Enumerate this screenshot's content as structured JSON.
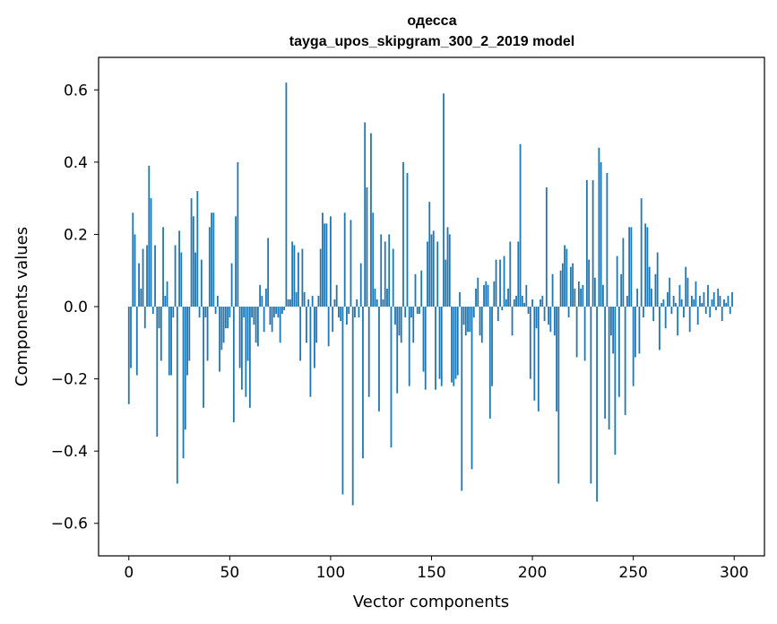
{
  "chart_data": {
    "type": "bar",
    "title": "одесса",
    "subtitle": "tayga_upos_skipgram_300_2_2019 model",
    "xlabel": "Vector components",
    "ylabel": "Components values",
    "xlim": [
      -15,
      315
    ],
    "ylim": [
      -0.69,
      0.69
    ],
    "xticks": [
      0,
      50,
      100,
      150,
      200,
      250,
      300
    ],
    "xtick_labels": [
      "0",
      "50",
      "100",
      "150",
      "200",
      "250",
      "300"
    ],
    "yticks": [
      0.6,
      0.4,
      0.2,
      0.0,
      -0.2,
      -0.4,
      -0.6
    ],
    "ytick_labels": [
      "0.6",
      "0.4",
      "0.2",
      "0.0",
      "−0.2",
      "−0.4",
      "−0.6"
    ],
    "bar_color": "#1f77b4",
    "grid": false,
    "x": "indices 0..299",
    "values": [
      -0.27,
      -0.17,
      0.26,
      0.2,
      -0.19,
      0.12,
      0.05,
      0.16,
      -0.06,
      0.17,
      0.39,
      0.3,
      -0.02,
      0.17,
      -0.36,
      -0.06,
      -0.15,
      0.22,
      0.03,
      0.07,
      -0.19,
      -0.19,
      -0.03,
      0.17,
      -0.49,
      0.21,
      0.15,
      -0.42,
      -0.34,
      -0.19,
      -0.15,
      0.3,
      0.25,
      0.15,
      0.32,
      -0.03,
      0.13,
      -0.28,
      -0.03,
      -0.15,
      0.22,
      0.26,
      0.26,
      -0.02,
      0.03,
      -0.18,
      -0.12,
      -0.1,
      -0.06,
      -0.06,
      -0.03,
      0.12,
      -0.32,
      0.25,
      0.4,
      -0.17,
      -0.23,
      -0.03,
      -0.25,
      -0.15,
      -0.28,
      -0.03,
      -0.05,
      -0.1,
      -0.11,
      0.06,
      0.03,
      -0.07,
      0.05,
      0.19,
      -0.05,
      -0.07,
      -0.03,
      -0.02,
      -0.03,
      -0.1,
      -0.02,
      -0.01,
      0.62,
      0.02,
      0.02,
      0.18,
      0.17,
      0.04,
      0.15,
      -0.15,
      0.16,
      0.04,
      -0.1,
      0.02,
      -0.25,
      0.03,
      -0.17,
      -0.1,
      0.03,
      0.16,
      0.26,
      0.23,
      0.23,
      -0.11,
      0.25,
      -0.07,
      0.02,
      0.06,
      -0.03,
      -0.04,
      -0.52,
      0.26,
      -0.05,
      -0.02,
      0.24,
      -0.55,
      -0.03,
      0.02,
      -0.03,
      0.12,
      -0.42,
      0.51,
      0.33,
      -0.25,
      0.48,
      0.26,
      0.05,
      0.02,
      -0.29,
      0.2,
      0.02,
      0.18,
      0.05,
      0.2,
      -0.39,
      0.16,
      -0.05,
      -0.24,
      -0.08,
      -0.1,
      0.4,
      -0.03,
      0.37,
      -0.22,
      -0.03,
      -0.1,
      0.09,
      -0.02,
      -0.02,
      0.1,
      -0.18,
      -0.23,
      0.18,
      0.29,
      0.2,
      0.21,
      -0.23,
      0.18,
      -0.2,
      -0.22,
      0.59,
      0.13,
      0.22,
      0.2,
      -0.21,
      -0.22,
      -0.2,
      -0.19,
      0.04,
      -0.51,
      -0.05,
      -0.08,
      -0.07,
      -0.07,
      -0.45,
      -0.03,
      0.05,
      0.08,
      -0.08,
      -0.1,
      0.06,
      0.07,
      0.06,
      -0.31,
      -0.22,
      0.07,
      0.13,
      -0.04,
      0.13,
      -0.01,
      0.14,
      0.02,
      0.05,
      0.18,
      -0.08,
      0.02,
      0.03,
      0.18,
      0.45,
      0.03,
      0.01,
      0.06,
      -0.02,
      -0.2,
      0.02,
      -0.26,
      -0.06,
      -0.29,
      0.02,
      0.03,
      -0.04,
      0.33,
      -0.05,
      -0.07,
      0.09,
      -0.08,
      -0.29,
      -0.49,
      0.1,
      0.12,
      0.17,
      0.16,
      -0.03,
      0.11,
      0.12,
      0.05,
      -0.14,
      0.07,
      0.05,
      0.06,
      -0.15,
      0.35,
      0.13,
      -0.49,
      0.35,
      0.08,
      -0.54,
      0.44,
      0.4,
      0.06,
      -0.31,
      0.37,
      -0.34,
      -0.08,
      -0.13,
      -0.41,
      0.14,
      -0.25,
      0.09,
      0.19,
      -0.3,
      0.03,
      0.22,
      0.22,
      -0.22,
      -0.14,
      0.05,
      -0.13,
      0.3,
      -0.03,
      0.23,
      0.22,
      0.11,
      0.05,
      -0.04,
      0.09,
      0.15,
      -0.12,
      0.01,
      0.02,
      -0.06,
      0.04,
      0.08,
      -0.02,
      0.03,
      0.01,
      -0.08,
      0.06,
      0.02,
      -0.03,
      0.11,
      0.08,
      -0.07,
      0.03,
      0.02,
      0.07,
      -0.05,
      0.03,
      0.01,
      0.04,
      -0.02,
      0.06,
      -0.03,
      0.02,
      0.04,
      -0.01,
      0.05,
      0.03,
      -0.04,
      0.02,
      0.01,
      0.03,
      -0.02,
      0.04
    ]
  }
}
